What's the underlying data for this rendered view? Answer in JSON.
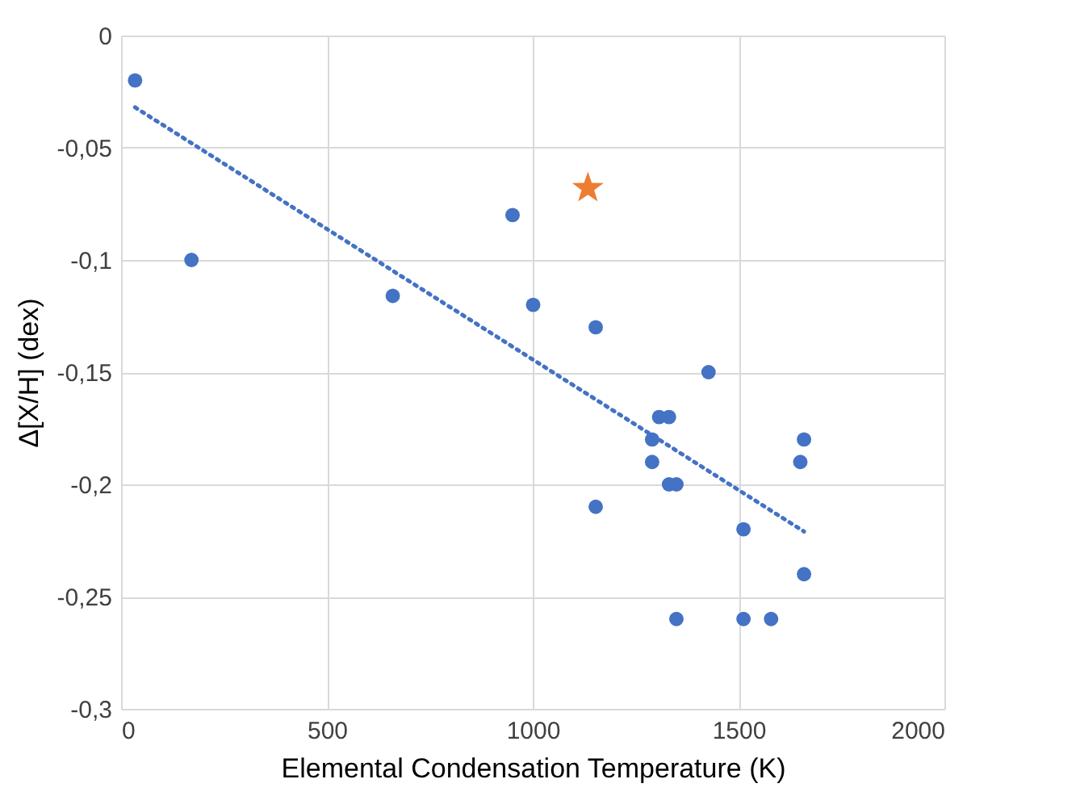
{
  "chart_data": {
    "type": "scatter",
    "xlabel": "Elemental Condensation Temperature (K)",
    "ylabel": "Δ[X/H] (dex)",
    "xlim": [
      0,
      2000
    ],
    "xticks": [
      0,
      500,
      1000,
      1500,
      2000
    ],
    "ylim": [
      -0.3,
      0
    ],
    "yticks": [
      {
        "value": -0.3,
        "label": "-0,3"
      },
      {
        "value": -0.25,
        "label": "-0,25"
      },
      {
        "value": -0.2,
        "label": "-0,2"
      },
      {
        "value": -0.15,
        "label": "-0,15"
      },
      {
        "value": -0.1,
        "label": "-0,1"
      },
      {
        "value": -0.05,
        "label": "-0,05"
      },
      {
        "value": 0,
        "label": "0"
      }
    ],
    "grid": true,
    "series": [
      {
        "type": "scatter",
        "marker": "circle",
        "color": "#4472c4",
        "x": [
          34,
          171,
          660,
          951,
          1001,
          1153,
          1427,
          1307,
          1331,
          1290,
          1290,
          1331,
          1349,
          1153,
          1512,
          1659,
          1650,
          1659,
          1349,
          1512,
          1579
        ],
        "values": [
          -0.02,
          -0.1,
          -0.116,
          -0.08,
          -0.12,
          -0.13,
          -0.15,
          -0.17,
          -0.17,
          -0.18,
          -0.19,
          -0.2,
          -0.2,
          -0.21,
          -0.22,
          -0.18,
          -0.19,
          -0.24,
          -0.26,
          -0.26,
          -0.26
        ]
      },
      {
        "type": "scatter",
        "marker": "star",
        "color": "#ed7d31",
        "x": [
          1134
        ],
        "values": [
          -0.068
        ]
      },
      {
        "type": "line",
        "line_style": "dotted",
        "marker": "none",
        "color": "#4472c4",
        "x": [
          34,
          1659
        ],
        "values": [
          -0.032,
          -0.221
        ]
      }
    ]
  }
}
